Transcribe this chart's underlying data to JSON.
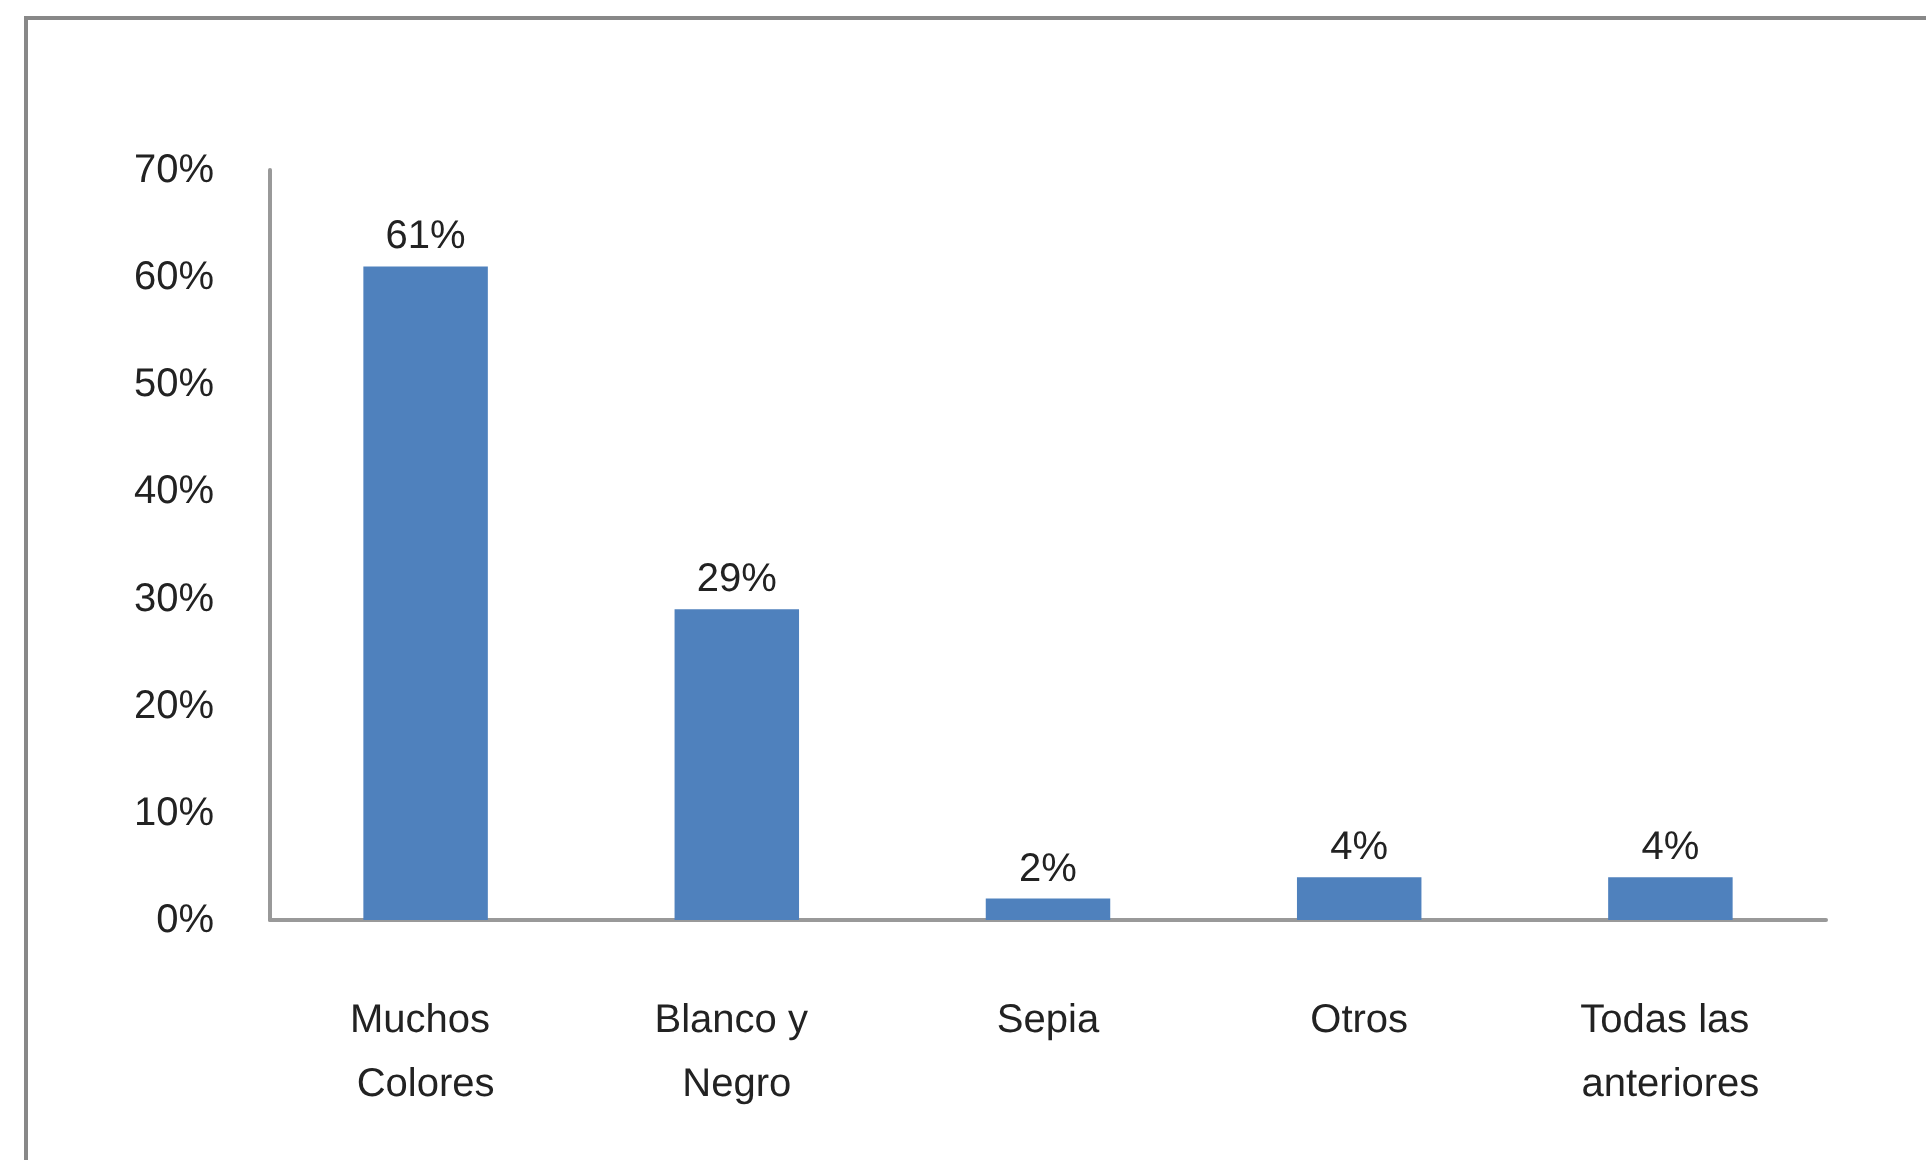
{
  "chart_data": {
    "type": "bar",
    "categories": [
      "Muchos Colores",
      "Blanco y Negro",
      "Sepia",
      "Otros",
      "Todas las anteriores"
    ],
    "values": [
      61,
      29,
      2,
      4,
      4
    ],
    "color": "#4f81bd",
    "value_labels": [
      "61%",
      "29%",
      "2%",
      "4%",
      "4%"
    ],
    "ylim": [
      0,
      70
    ],
    "yticks": [
      {
        "value": 0,
        "label": "0%"
      },
      {
        "value": 10,
        "label": "10%"
      },
      {
        "value": 20,
        "label": "20%"
      },
      {
        "value": 30,
        "label": "30%"
      },
      {
        "value": 40,
        "label": "40%"
      },
      {
        "value": 50,
        "label": "50%"
      },
      {
        "value": 60,
        "label": "60%"
      },
      {
        "value": 70,
        "label": "70%"
      }
    ],
    "grid": false
  }
}
